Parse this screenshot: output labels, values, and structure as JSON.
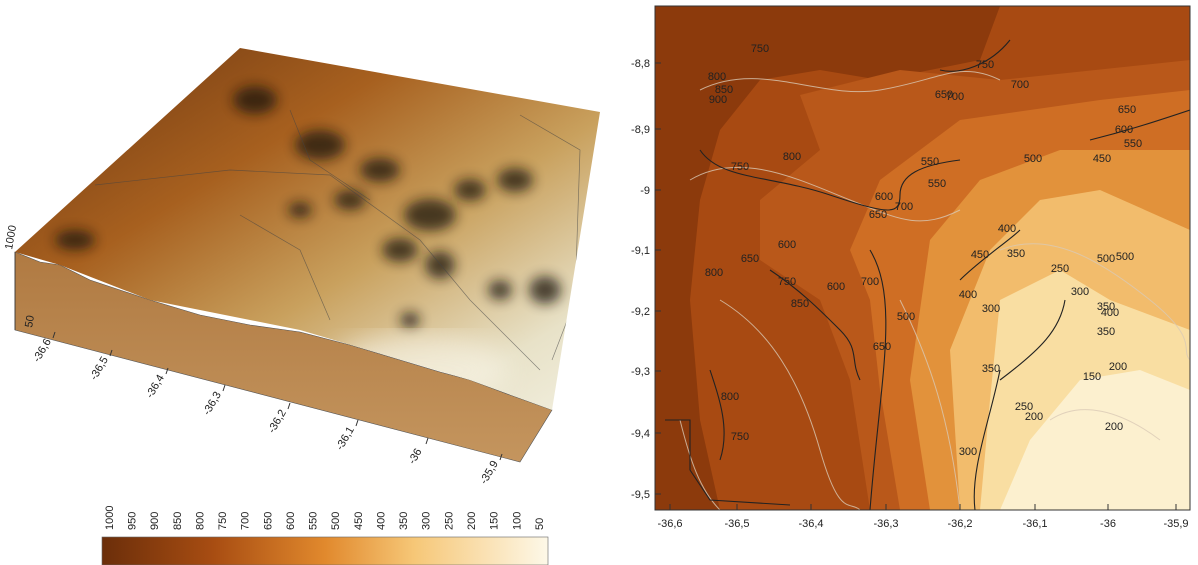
{
  "terrain_3d": {
    "x_axis_labels": [
      "-36,6",
      "-36,5",
      "-36,4",
      "-36,3",
      "-36,2",
      "-36,1",
      "-36",
      "-35,9"
    ],
    "z_axis_labels": [
      "1000",
      "50"
    ]
  },
  "colorbar": {
    "labels": [
      "1000",
      "950",
      "900",
      "850",
      "800",
      "750",
      "700",
      "650",
      "600",
      "550",
      "500",
      "450",
      "400",
      "350",
      "300",
      "250",
      "200",
      "150",
      "100",
      "50"
    ]
  },
  "contour_map": {
    "y_axis_labels": [
      "-8,8",
      "-8,9",
      "-9",
      "-9,1",
      "-9,2",
      "-9,3",
      "-9,4",
      "-9,5"
    ],
    "x_axis_labels": [
      "-36,6",
      "-36,5",
      "-36,4",
      "-36,3",
      "-36,2",
      "-36,1",
      "-36",
      "-35,9"
    ],
    "contour_labels": [
      "800",
      "850",
      "900",
      "750",
      "750",
      "700",
      "650",
      "650",
      "600",
      "550",
      "500",
      "450",
      "800",
      "750",
      "700",
      "600",
      "650",
      "700",
      "550",
      "550",
      "400",
      "600",
      "650",
      "450",
      "350",
      "250",
      "500",
      "500",
      "800",
      "750",
      "850",
      "600",
      "700",
      "650",
      "500",
      "400",
      "300",
      "300",
      "350",
      "350",
      "400",
      "150",
      "200",
      "350",
      "250",
      "200",
      "200",
      "300",
      "750",
      "800"
    ]
  }
}
